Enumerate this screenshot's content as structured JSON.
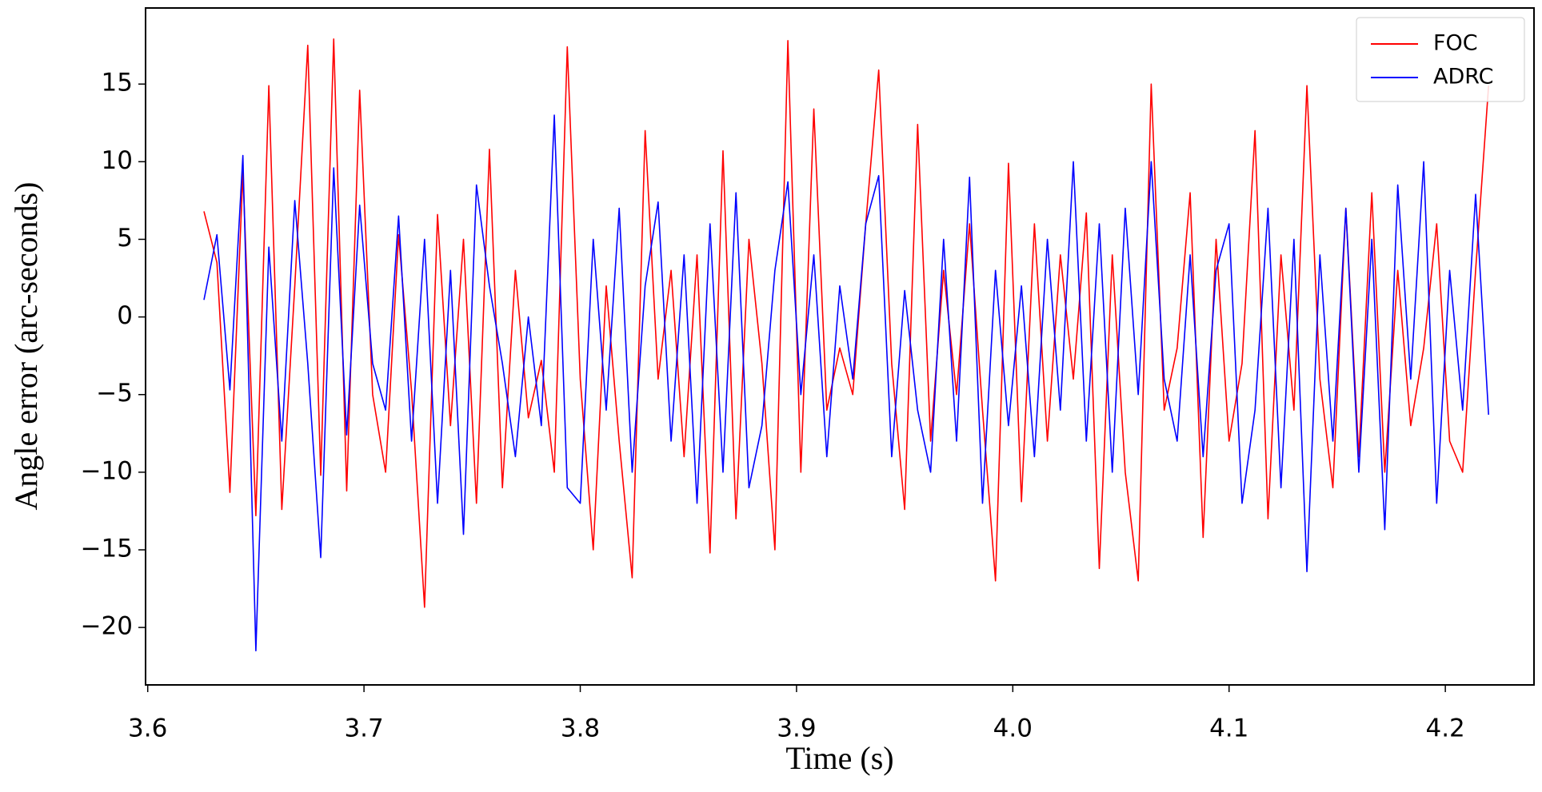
{
  "chart_data": {
    "type": "line",
    "xlabel": "Time (s)",
    "ylabel": "Angle error (arc-seconds)",
    "x": [
      3.626,
      3.632,
      3.638,
      3.644,
      3.65,
      3.656,
      3.662,
      3.668,
      3.674,
      3.68,
      3.686,
      3.692,
      3.698,
      3.704,
      3.71,
      3.716,
      3.722,
      3.728,
      3.734,
      3.74,
      3.746,
      3.752,
      3.758,
      3.764,
      3.77,
      3.776,
      3.782,
      3.788,
      3.794,
      3.8,
      3.806,
      3.812,
      3.818,
      3.824,
      3.83,
      3.836,
      3.842,
      3.848,
      3.854,
      3.86,
      3.866,
      3.872,
      3.878,
      3.884,
      3.89,
      3.896,
      3.902,
      3.908,
      3.914,
      3.92,
      3.926,
      3.932,
      3.938,
      3.944,
      3.95,
      3.956,
      3.962,
      3.968,
      3.974,
      3.98,
      3.986,
      3.992,
      3.998,
      4.004,
      4.01,
      4.016,
      4.022,
      4.028,
      4.034,
      4.04,
      4.046,
      4.052,
      4.058,
      4.064,
      4.07,
      4.076,
      4.082,
      4.088,
      4.094,
      4.1,
      4.106,
      4.112,
      4.118,
      4.124,
      4.13,
      4.136,
      4.142,
      4.148,
      4.154,
      4.16,
      4.166,
      4.172,
      4.178,
      4.184,
      4.19,
      4.196,
      4.202,
      4.208,
      4.214,
      4.22
    ],
    "series": [
      {
        "name": "FOC",
        "color": "#ff0000",
        "values": [
          6.8,
          3.5,
          -11.3,
          9.3,
          -12.8,
          14.9,
          -12.4,
          2,
          17.5,
          -10.2,
          17.9,
          -11.2,
          14.6,
          -5,
          -10,
          5.3,
          -4.8,
          -18.7,
          6.6,
          -7,
          5,
          -12,
          10.8,
          -11,
          3,
          -6.5,
          -2.8,
          -10,
          17.4,
          -4,
          -15,
          2,
          -8,
          -16.8,
          12,
          -4,
          3,
          -9,
          4,
          -15.2,
          10.7,
          -13,
          5,
          -3,
          -15,
          17.8,
          -10,
          13.4,
          -6,
          -2,
          -5,
          6,
          15.9,
          -3,
          -12.4,
          12.4,
          -8,
          3,
          -5,
          6,
          -6,
          -17,
          9.9,
          -11.9,
          6,
          -8,
          4,
          -4,
          6.7,
          -16.2,
          4,
          -10,
          -17,
          15,
          -6,
          -2,
          8,
          -14.2,
          5,
          -8,
          -3,
          12,
          -13,
          4,
          -6,
          14.9,
          -4,
          -11,
          7,
          -9,
          8,
          -10,
          3,
          -7,
          -2,
          6,
          -8,
          -10,
          3,
          14.9
        ]
      },
      {
        "name": "ADRC",
        "color": "#0000ff",
        "values": [
          1.1,
          5.3,
          -4.7,
          10.4,
          -21.5,
          4.5,
          -8,
          7.5,
          -3,
          -15.5,
          9.6,
          -7.6,
          7.2,
          -3,
          -6,
          6.5,
          -8,
          5,
          -12,
          3,
          -14,
          8.5,
          2,
          -3,
          -9,
          0,
          -7,
          13,
          -11,
          -12,
          5,
          -6,
          7,
          -10,
          2,
          7.4,
          -8,
          4,
          -12,
          6,
          -10,
          8,
          -11,
          -7,
          3,
          8.7,
          -5,
          4,
          -9,
          2,
          -4,
          6,
          9.1,
          -9,
          1.7,
          -6,
          -10,
          5,
          -8,
          9,
          -12,
          3,
          -7,
          2,
          -9,
          5,
          -6,
          10,
          -8,
          6,
          -10,
          7,
          -5,
          10,
          -4,
          -8,
          4,
          -9,
          3,
          6,
          -12,
          -6,
          7,
          -11,
          5,
          -16.4,
          4,
          -8,
          7,
          -10,
          5,
          -13.7,
          8.5,
          -4,
          10,
          -12,
          3,
          -6,
          7.9,
          -6.3
        ]
      }
    ],
    "xlim": [
      3.599,
      4.241
    ],
    "xticks": [
      3.6,
      3.7,
      3.8,
      3.9,
      {
        "value": 4,
        "label": "4.0"
      },
      4.1,
      4.2
    ],
    "ylim": [
      -23.7,
      19.9
    ],
    "yticks": [
      {
        "value": -20,
        "label": "−20"
      },
      {
        "value": -15,
        "label": "−15"
      },
      {
        "value": -10,
        "label": "−10"
      },
      {
        "value": -5,
        "label": "−5"
      },
      0,
      5,
      10,
      15
    ],
    "grid": false,
    "legend": "upper right"
  }
}
